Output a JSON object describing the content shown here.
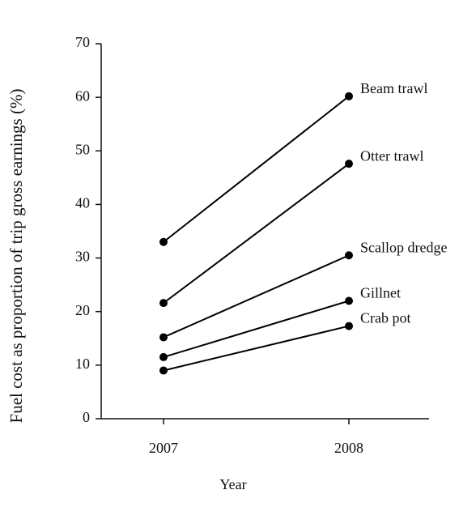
{
  "chart_data": {
    "type": "line",
    "xlabel": "Year",
    "ylabel": "Fuel cost as proportion of trip gross earnings (%)",
    "categories": [
      "2007",
      "2008"
    ],
    "series": [
      {
        "name": "Beam trawl",
        "color": "#000000",
        "values": [
          33,
          60.2
        ]
      },
      {
        "name": "Otter trawl",
        "color": "#000000",
        "values": [
          21.6,
          47.6
        ]
      },
      {
        "name": "Scallop dredge",
        "color": "#000000",
        "values": [
          15.2,
          30.5
        ]
      },
      {
        "name": "Gillnet",
        "color": "#000000",
        "values": [
          11.5,
          22
        ]
      },
      {
        "name": "Crab pot",
        "color": "#000000",
        "values": [
          9,
          17.3
        ]
      }
    ],
    "ylim": [
      0,
      70
    ],
    "yticks": [
      0,
      10,
      20,
      30,
      40,
      50,
      60,
      70
    ],
    "grid": false
  }
}
